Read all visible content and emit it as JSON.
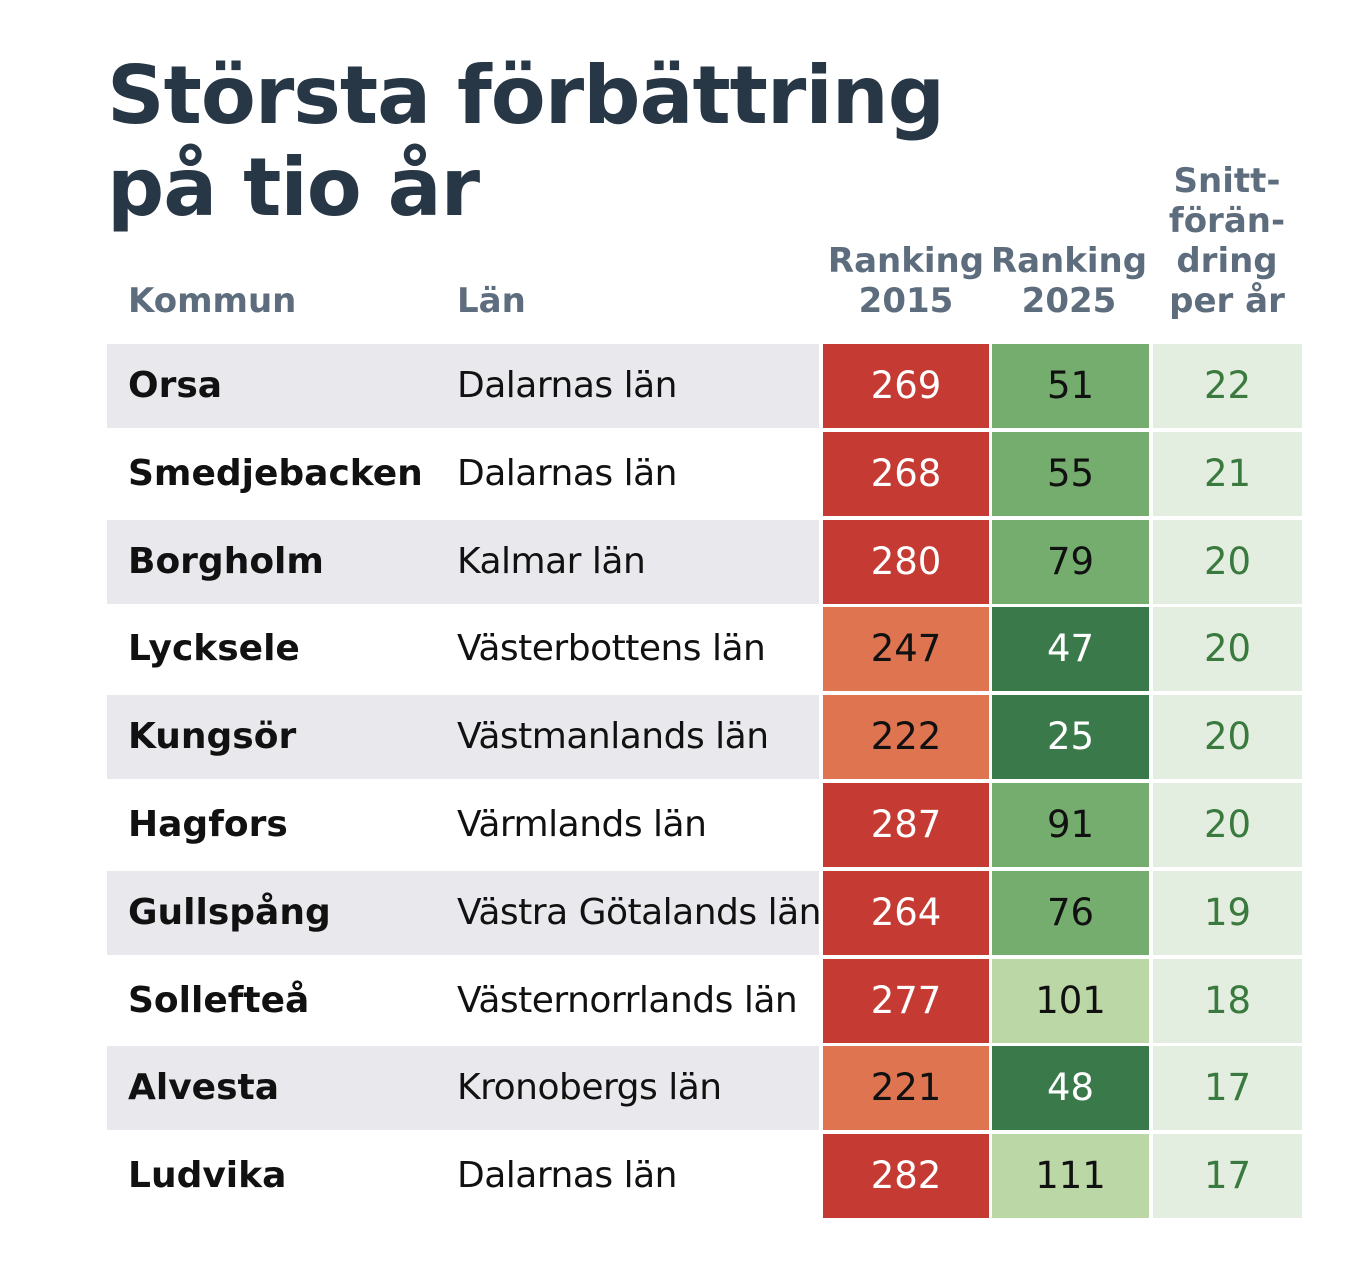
{
  "title_line1": "Största förbättring",
  "title_line2": "på tio år",
  "headers": {
    "kommun": "Kommun",
    "lan": "Län",
    "ranking2015_line1": "Ranking",
    "ranking2015_line2": "2015",
    "ranking2025_line1": "Ranking",
    "ranking2025_line2": "2025",
    "snitt_line1": "Snitt-",
    "snitt_line2": "förän-",
    "snitt_line3": "dring",
    "snitt_line4": "per år"
  },
  "colors": {
    "title": "#273746",
    "header": "#5d6d7e",
    "red_dark": "#c53a32",
    "red_light": "#de7550",
    "green_dark": "#3a7a4a",
    "green_mid": "#74ad6e",
    "green_light": "#bcd7a6",
    "snitt_bg": "#e3eee0",
    "snitt_text": "#3a7a3f",
    "row_stripe": "#e9e9ed"
  },
  "chart_data": {
    "type": "table",
    "columns": [
      "Kommun",
      "Län",
      "Ranking 2015",
      "Ranking 2025",
      "Snitt-förän-dring per år"
    ],
    "rows": [
      {
        "kommun": "Orsa",
        "lan": "Dalarnas län",
        "r2015": 269,
        "r2025": 51,
        "snitt": 22,
        "c2015": "red_dark",
        "c2025": "green_mid"
      },
      {
        "kommun": "Smedjebacken",
        "lan": "Dalarnas län",
        "r2015": 268,
        "r2025": 55,
        "snitt": 21,
        "c2015": "red_dark",
        "c2025": "green_mid"
      },
      {
        "kommun": "Borgholm",
        "lan": "Kalmar län",
        "r2015": 280,
        "r2025": 79,
        "snitt": 20,
        "c2015": "red_dark",
        "c2025": "green_mid"
      },
      {
        "kommun": "Lycksele",
        "lan": "Västerbottens län",
        "r2015": 247,
        "r2025": 47,
        "snitt": 20,
        "c2015": "red_light",
        "c2025": "green_dark"
      },
      {
        "kommun": "Kungsör",
        "lan": "Västmanlands län",
        "r2015": 222,
        "r2025": 25,
        "snitt": 20,
        "c2015": "red_light",
        "c2025": "green_dark"
      },
      {
        "kommun": "Hagfors",
        "lan": "Värmlands län",
        "r2015": 287,
        "r2025": 91,
        "snitt": 20,
        "c2015": "red_dark",
        "c2025": "green_mid"
      },
      {
        "kommun": "Gullspång",
        "lan": "Västra Götalands län",
        "r2015": 264,
        "r2025": 76,
        "snitt": 19,
        "c2015": "red_dark",
        "c2025": "green_mid"
      },
      {
        "kommun": "Sollefteå",
        "lan": "Västernorrlands län",
        "r2015": 277,
        "r2025": 101,
        "snitt": 18,
        "c2015": "red_dark",
        "c2025": "green_light"
      },
      {
        "kommun": "Alvesta",
        "lan": "Kronobergs län",
        "r2015": 221,
        "r2025": 48,
        "snitt": 17,
        "c2015": "red_light",
        "c2025": "green_dark"
      },
      {
        "kommun": "Ludvika",
        "lan": "Dalarnas län",
        "r2015": 282,
        "r2025": 111,
        "snitt": 17,
        "c2015": "red_dark",
        "c2025": "green_light"
      }
    ]
  }
}
